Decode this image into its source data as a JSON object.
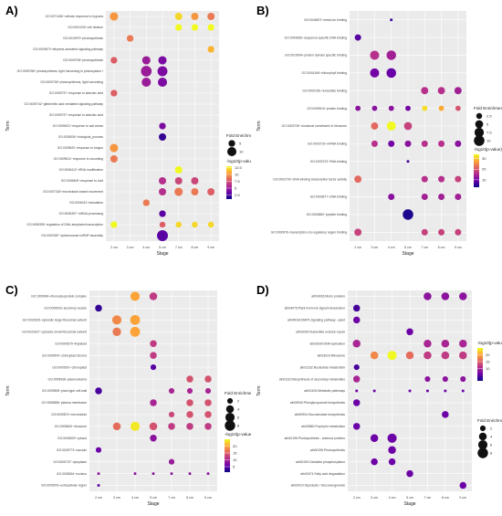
{
  "stages": [
    "2 cm",
    "3 cm",
    "4 cm",
    "5 cm",
    "7 cm",
    "8 cm",
    "9 cm"
  ],
  "chart_data": [
    {
      "type": "scatter",
      "panel": "A)",
      "xlabel": "Stage",
      "ylabel": "Term",
      "legend_fe_title": "Fold Enrichment",
      "legend_fe_values": [
        5,
        10
      ],
      "legend_p_title": "-log10(p-value)",
      "legend_p_ticks": [
        12.5,
        10.0,
        7.5,
        5.0,
        2.5
      ],
      "p_range": [
        1,
        13
      ],
      "fe_range": [
        2,
        15
      ],
      "terms": [
        "GO:0071456~cellular response to hypoxia",
        "GO:0031225~cell division",
        "GO:0015979~photosynthesis",
        "GO:0009873~ethylene-activated signaling pathway",
        "GO:0009765~photosynthesis",
        "GO:0009768~photosynthesis, light harvesting in photosystem I",
        "GO:0009765~photosynthesis, light harvesting",
        "GO:0009737~response to abscisic acid",
        "GO:0009742~gibberellic acid mediated signaling pathway",
        "GO:0009737~response to abscisic acid",
        "GO:0009631~response to salt stress",
        "GO:0008150~biological_process",
        "GO:0009620~response to fungus",
        "GO:0009611~response to wounding",
        "GO:0006412~rRNA modification",
        "GO:0006409~response to cold",
        "GO:0007018~microtubule-based movement",
        "GO:0006412~translation",
        "GO:0006397~mRNA processing",
        "GO:0006355~regulation of DNA-templated transcription",
        "GO:0000387~spliceosomal snRNP assembly"
      ],
      "points": [
        [
          0,
          0,
          10,
          8
        ],
        [
          4,
          0,
          12,
          6
        ],
        [
          5,
          0,
          10,
          6
        ],
        [
          6,
          0,
          9,
          6
        ],
        [
          4,
          1,
          13,
          5
        ],
        [
          5,
          1,
          13,
          5
        ],
        [
          6,
          1,
          13,
          5
        ],
        [
          1,
          2,
          9,
          5
        ],
        [
          6,
          3,
          11,
          5
        ],
        [
          0,
          4,
          8,
          5
        ],
        [
          2,
          4,
          5,
          8
        ],
        [
          3,
          4,
          4,
          8
        ],
        [
          2,
          5,
          5,
          14
        ],
        [
          3,
          5,
          4,
          12
        ],
        [
          2,
          6,
          5,
          10
        ],
        [
          3,
          6,
          4,
          10
        ],
        [
          0,
          7,
          8,
          5
        ],
        [
          3,
          10,
          4,
          5
        ],
        [
          3,
          11,
          2,
          6
        ],
        [
          0,
          12,
          10,
          8
        ],
        [
          0,
          13,
          9,
          6
        ],
        [
          4,
          14,
          13,
          6
        ],
        [
          3,
          15,
          6,
          6
        ],
        [
          4,
          15,
          7,
          6
        ],
        [
          5,
          15,
          7,
          6
        ],
        [
          3,
          16,
          6,
          6
        ],
        [
          4,
          16,
          9,
          8
        ],
        [
          5,
          16,
          9,
          6
        ],
        [
          6,
          16,
          8,
          6
        ],
        [
          2,
          17,
          9,
          5
        ],
        [
          3,
          18,
          3,
          5
        ],
        [
          0,
          19,
          13,
          5
        ],
        [
          3,
          19,
          8,
          4
        ],
        [
          4,
          19,
          12,
          4
        ],
        [
          5,
          19,
          12,
          4
        ],
        [
          6,
          19,
          12,
          4
        ],
        [
          3,
          20,
          3,
          15
        ]
      ]
    },
    {
      "type": "scatter",
      "panel": "B)",
      "xlabel": "Stage",
      "ylabel": "Term",
      "legend_fe_title": "Fold Enrichment",
      "legend_fe_values": [
        2.5,
        5.0,
        7.5,
        10.0
      ],
      "legend_p_title": "-log10(p-value)",
      "legend_p_ticks": [
        30,
        20,
        10
      ],
      "p_range": [
        3,
        34
      ],
      "fe_range": [
        1,
        11
      ],
      "terms": [
        "GO:0046872~metal ion binding",
        "GO:0043565~sequence-specific DNA binding",
        "GO:0019904~protein domain specific binding",
        "GO:0016168~chlorophyll binding",
        "GO:0000166~nucleotide binding",
        "GO:0005515~protein binding",
        "GO:0003735~structural constituent of ribosome",
        "GO:0003729~mRNA binding",
        "GO:0003723~RNA binding",
        "GO:0003700~DNA-binding transcription factor activity",
        "GO:0003677~DNA binding",
        "GO:0003682~peptide binding",
        "GO:0000976~transcription cis-regulatory region binding"
      ],
      "points": [
        [
          2,
          0,
          6,
          1
        ],
        [
          0,
          1,
          8,
          3
        ],
        [
          1,
          2,
          16,
          7
        ],
        [
          2,
          2,
          14,
          8
        ],
        [
          1,
          3,
          10,
          7
        ],
        [
          2,
          3,
          9,
          8
        ],
        [
          4,
          4,
          16,
          4
        ],
        [
          5,
          4,
          16,
          4
        ],
        [
          6,
          4,
          14,
          4
        ],
        [
          0,
          5,
          12,
          2
        ],
        [
          1,
          5,
          12,
          2
        ],
        [
          2,
          5,
          12,
          2
        ],
        [
          3,
          5,
          10,
          2
        ],
        [
          4,
          5,
          32,
          2
        ],
        [
          5,
          5,
          28,
          2
        ],
        [
          6,
          5,
          20,
          2
        ],
        [
          1,
          6,
          22,
          4
        ],
        [
          2,
          6,
          34,
          7
        ],
        [
          3,
          6,
          18,
          5
        ],
        [
          1,
          7,
          16,
          3
        ],
        [
          2,
          7,
          10,
          3
        ],
        [
          3,
          7,
          12,
          3
        ],
        [
          4,
          7,
          16,
          3
        ],
        [
          5,
          7,
          16,
          3
        ],
        [
          6,
          7,
          12,
          3
        ],
        [
          3,
          8,
          6,
          1
        ],
        [
          0,
          9,
          22,
          4
        ],
        [
          4,
          9,
          16,
          3
        ],
        [
          5,
          9,
          16,
          3
        ],
        [
          6,
          9,
          18,
          3
        ],
        [
          2,
          10,
          12,
          3
        ],
        [
          4,
          10,
          14,
          3
        ],
        [
          5,
          10,
          14,
          3
        ],
        [
          6,
          10,
          14,
          3
        ],
        [
          3,
          11,
          4,
          10
        ],
        [
          0,
          12,
          18,
          4
        ],
        [
          4,
          12,
          18,
          3
        ],
        [
          5,
          12,
          18,
          3
        ],
        [
          6,
          12,
          18,
          3
        ]
      ]
    },
    {
      "type": "scatter",
      "panel": "C)",
      "xlabel": "Stage",
      "ylabel": "Term",
      "legend_fe_title": "Fold Enrichment",
      "legend_fe_values": [
        2,
        4,
        6,
        8
      ],
      "legend_p_title": "-log10(p-value)",
      "legend_p_ticks": [
        20,
        15,
        10,
        5
      ],
      "p_range": [
        1,
        25
      ],
      "fe_range": [
        1,
        9
      ],
      "terms": [
        "GO:1990904~ribonucleoprotein complex",
        "GO:0005933~secretory vesicle",
        "GO:0022625~cytosolic large ribosomal subunit",
        "GO:0022627~cytosolic small ribosomal subunit",
        "GO:0009579~thylakoid",
        "GO:0009570~chloroplast stroma",
        "GO:0009507~chloroplast",
        "GO:0005938~plasmodesma",
        "GO:0009505~plant-type cell wall",
        "GO:0005886~plasma membrane",
        "GO:0005874~microtubule",
        "GO:0005840~ribosome",
        "GO:0005829~cytosol",
        "GO:0005773~vacuole",
        "GO:0005737~cytoplasm",
        "GO:0005634~nucleus",
        "GO:0005576~extracellular region"
      ],
      "points": [
        [
          2,
          0,
          20,
          6
        ],
        [
          3,
          0,
          12,
          4
        ],
        [
          0,
          1,
          3,
          3
        ],
        [
          1,
          2,
          18,
          6
        ],
        [
          2,
          2,
          20,
          7
        ],
        [
          1,
          3,
          17,
          5
        ],
        [
          2,
          3,
          20,
          7
        ],
        [
          3,
          4,
          12,
          3
        ],
        [
          3,
          5,
          12,
          3
        ],
        [
          3,
          6,
          5,
          2
        ],
        [
          5,
          7,
          14,
          3
        ],
        [
          6,
          7,
          14,
          3
        ],
        [
          0,
          8,
          4,
          3
        ],
        [
          4,
          8,
          10,
          2
        ],
        [
          5,
          8,
          10,
          2
        ],
        [
          6,
          8,
          10,
          2
        ],
        [
          3,
          9,
          10,
          3
        ],
        [
          5,
          9,
          14,
          3
        ],
        [
          6,
          9,
          14,
          3
        ],
        [
          4,
          10,
          13,
          2
        ],
        [
          5,
          10,
          14,
          3
        ],
        [
          6,
          10,
          14,
          3
        ],
        [
          1,
          11,
          16,
          4
        ],
        [
          2,
          11,
          24,
          6
        ],
        [
          3,
          11,
          14,
          4
        ],
        [
          4,
          11,
          12,
          3
        ],
        [
          5,
          11,
          12,
          3
        ],
        [
          6,
          11,
          12,
          3
        ],
        [
          3,
          12,
          8,
          3
        ],
        [
          0,
          13,
          6,
          2
        ],
        [
          4,
          14,
          9,
          2
        ],
        [
          0,
          15,
          8,
          1
        ],
        [
          2,
          15,
          8,
          1
        ],
        [
          3,
          15,
          8,
          1
        ],
        [
          4,
          15,
          8,
          1
        ],
        [
          5,
          15,
          8,
          1
        ],
        [
          6,
          15,
          8,
          1
        ],
        [
          0,
          16,
          5,
          1
        ]
      ]
    },
    {
      "type": "scatter",
      "panel": "D)",
      "xlabel": "Stage",
      "ylabel": "Term",
      "legend_fe_title": "Fold Enrichment",
      "legend_fe_values": [
        2,
        4,
        6,
        8
      ],
      "legend_p_title": "-log10(p-value)",
      "legend_p_ticks": [
        20,
        15,
        10
      ],
      "p_range": [
        1,
        25
      ],
      "fe_range": [
        1,
        9
      ],
      "terms": [
        "ath04016:Motor proteins",
        "ath04075:Plant hormone signal transduction",
        "ath04016:MAPK signaling pathway - plant",
        "ath03020:Nucleotide excision repair",
        "ath03030:DNA replication",
        "ath03010:Ribosome",
        "ath01232:Nucleotide metabolism",
        "ath01110:Biosynthesis of secondary metabolites",
        "ath01100:Metabolic pathways",
        "ath00940:Phenylpropanoid biosynthesis",
        "ath00904:Glucosinolate biosynthesis",
        "ath00860:Porphyrin metabolism",
        "ath00196:Photosynthesis - antenna proteins",
        "ath00195:Photosynthesis",
        "ath00190:Oxidative phosphorylation",
        "ath00071:Fatty acid degradation",
        "ath00010:Glycolysis / Gluconeogenesis"
      ],
      "points": [
        [
          4,
          0,
          8,
          4
        ],
        [
          5,
          0,
          8,
          4
        ],
        [
          6,
          0,
          8,
          4
        ],
        [
          0,
          1,
          4,
          3
        ],
        [
          0,
          2,
          6,
          3
        ],
        [
          3,
          3,
          6,
          3
        ],
        [
          0,
          4,
          10,
          4
        ],
        [
          4,
          4,
          10,
          4
        ],
        [
          5,
          4,
          10,
          4
        ],
        [
          6,
          4,
          10,
          4
        ],
        [
          1,
          5,
          18,
          4
        ],
        [
          2,
          5,
          26,
          6
        ],
        [
          3,
          5,
          16,
          4
        ],
        [
          4,
          5,
          12,
          4
        ],
        [
          5,
          5,
          12,
          4
        ],
        [
          6,
          5,
          12,
          4
        ],
        [
          0,
          6,
          4,
          2
        ],
        [
          0,
          7,
          10,
          3
        ],
        [
          4,
          7,
          8,
          2
        ],
        [
          5,
          7,
          8,
          2
        ],
        [
          6,
          7,
          8,
          2
        ],
        [
          0,
          8,
          6,
          1
        ],
        [
          1,
          8,
          6,
          1
        ],
        [
          3,
          8,
          6,
          1
        ],
        [
          4,
          8,
          6,
          1
        ],
        [
          5,
          8,
          6,
          1
        ],
        [
          6,
          8,
          6,
          1
        ],
        [
          0,
          9,
          6,
          3
        ],
        [
          5,
          10,
          6,
          3
        ],
        [
          0,
          11,
          6,
          3
        ],
        [
          1,
          12,
          6,
          4
        ],
        [
          2,
          12,
          6,
          6
        ],
        [
          2,
          13,
          6,
          4
        ],
        [
          1,
          14,
          6,
          3
        ],
        [
          2,
          14,
          6,
          3
        ],
        [
          3,
          15,
          6,
          3
        ],
        [
          6,
          16,
          6,
          3
        ]
      ]
    }
  ]
}
